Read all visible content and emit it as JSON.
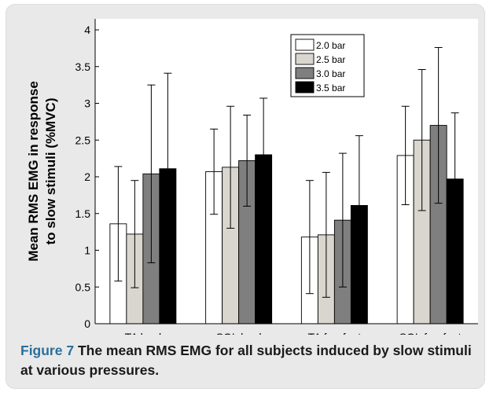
{
  "caption": {
    "label": "Figure 7",
    "text": " The mean RMS EMG for all subjects induced by slow stimuli at various pressures."
  },
  "chart_data": {
    "type": "bar",
    "categories": [
      "TA heel",
      "SOL heel",
      "TA forefoot",
      "SOL forefoot"
    ],
    "series": [
      {
        "name": "2.0 bar",
        "color": "#ffffff",
        "values": [
          1.36,
          2.07,
          1.18,
          2.29
        ],
        "errors": [
          0.78,
          0.58,
          0.77,
          0.67
        ]
      },
      {
        "name": "2.5 bar",
        "color": "#d9d6cf",
        "values": [
          1.22,
          2.13,
          1.21,
          2.5
        ],
        "errors": [
          0.73,
          0.83,
          0.85,
          0.96
        ]
      },
      {
        "name": "3.0 bar",
        "color": "#7f7f7f",
        "values": [
          2.04,
          2.22,
          1.41,
          2.7
        ],
        "errors": [
          1.21,
          0.62,
          0.91,
          1.06
        ]
      },
      {
        "name": "3.5 bar",
        "color": "#000000",
        "values": [
          2.11,
          2.3,
          1.61,
          1.97
        ],
        "errors": [
          1.3,
          0.77,
          0.95,
          0.9
        ]
      }
    ],
    "ylabel_lines": [
      "Mean RMS EMG in response",
      "to slow stimuli (%MVC)"
    ],
    "yticks": [
      0,
      0.5,
      1,
      1.5,
      2,
      2.5,
      3,
      3.5,
      4
    ],
    "ytick_labels": [
      "0",
      "0.5",
      "1",
      "1.5",
      "2",
      "2.5",
      "3",
      "3.5",
      "4"
    ],
    "ylim": [
      0,
      4.15
    ],
    "legend_position": "top-right",
    "grid": false
  }
}
